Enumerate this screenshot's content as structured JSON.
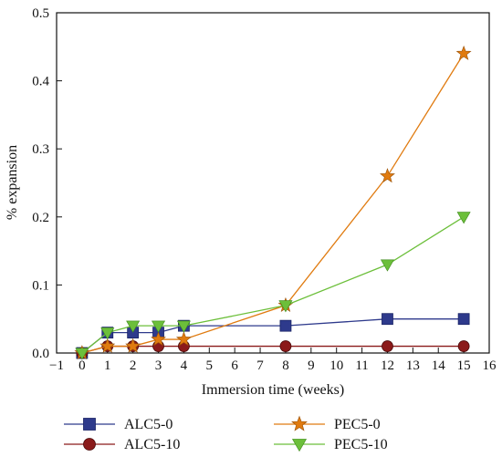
{
  "chart_data": {
    "type": "line",
    "xlabel": "Immersion time (weeks)",
    "ylabel": "% expansion",
    "xlim": [
      -1,
      16
    ],
    "ylim": [
      0,
      0.5
    ],
    "xticks": [
      -1,
      0,
      1,
      2,
      3,
      4,
      5,
      6,
      7,
      8,
      9,
      10,
      11,
      12,
      13,
      14,
      15,
      16
    ],
    "yticks": [
      0.0,
      0.1,
      0.2,
      0.3,
      0.4,
      0.5
    ],
    "ytick_labels": [
      "0.0",
      "0.1",
      "0.2",
      "0.3",
      "0.4",
      "0.5"
    ],
    "x": [
      0,
      1,
      2,
      3,
      4,
      8,
      12,
      15
    ],
    "legend_position": "bottom",
    "series": [
      {
        "name": "ALC5-0",
        "color": "#2e3a8c",
        "marker": "square",
        "values": [
          0,
          0.03,
          0.03,
          0.03,
          0.04,
          0.04,
          0.05,
          0.05
        ]
      },
      {
        "name": "ALC5-10",
        "color": "#8b1a1a",
        "marker": "circle",
        "values": [
          0,
          0.01,
          0.01,
          0.01,
          0.01,
          0.01,
          0.01,
          0.01
        ]
      },
      {
        "name": "PEC5-0",
        "color": "#e07b10",
        "marker": "star",
        "values": [
          0,
          0.01,
          0.01,
          0.02,
          0.02,
          0.07,
          0.26,
          0.44
        ]
      },
      {
        "name": "PEC5-10",
        "color": "#6cbf3a",
        "marker": "triangle-down",
        "values": [
          0,
          0.03,
          0.04,
          0.04,
          0.04,
          0.07,
          0.13,
          0.2
        ]
      }
    ]
  }
}
